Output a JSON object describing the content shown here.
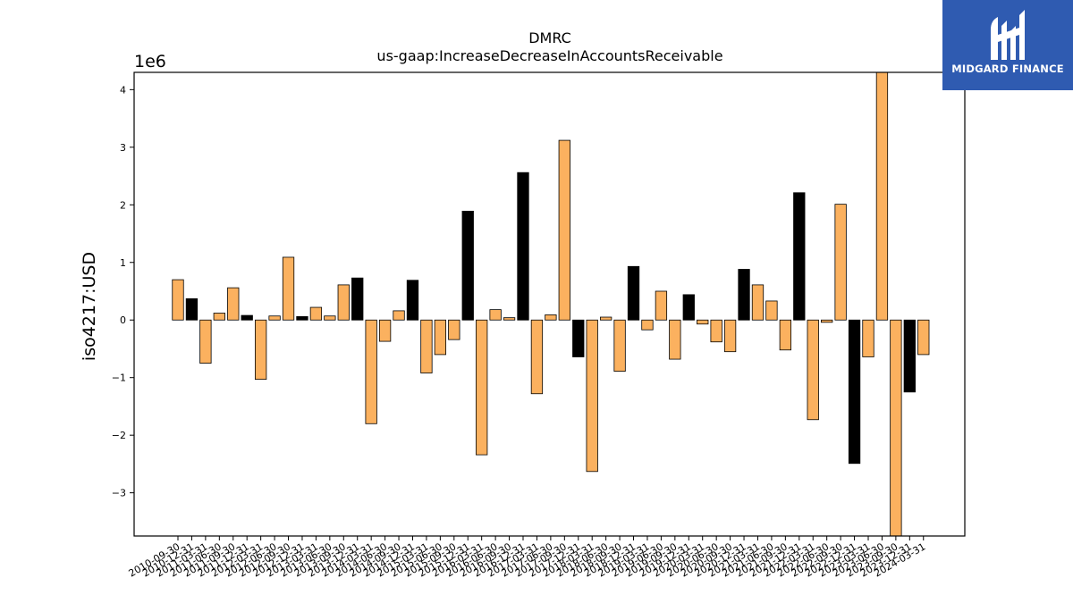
{
  "brand": {
    "name": "MIDGARD FINANCE",
    "background": "#2f5bb1"
  },
  "colors": {
    "bar_default": "#fbb15f",
    "bar_highlight": "#000000",
    "edge": "#000000"
  },
  "chart_data": {
    "type": "bar",
    "title": "DMRC",
    "subtitle": "us-gaap:IncreaseDecreaseInAccountsReceivable",
    "xlabel": "",
    "ylabel": "iso4217:USD",
    "scale_label": "1e6",
    "ylim": [
      -3.75,
      4.3
    ],
    "yticks": [
      -3,
      -2,
      -1,
      0,
      1,
      2,
      3,
      4
    ],
    "ytick_labels": [
      "−3",
      "−2",
      "−1",
      "0",
      "1",
      "2",
      "3",
      "4"
    ],
    "grid": false,
    "categories": [
      "2010-09-30",
      "2010-12-31",
      "2011-03-31",
      "2011-06-30",
      "2011-09-30",
      "2011-12-31",
      "2012-03-31",
      "2012-06-30",
      "2012-09-30",
      "2012-12-31",
      "2013-03-31",
      "2013-06-30",
      "2013-09-30",
      "2013-12-31",
      "2014-03-31",
      "2014-06-30",
      "2014-09-30",
      "2014-12-31",
      "2015-03-31",
      "2015-06-30",
      "2015-09-30",
      "2015-12-31",
      "2016-03-31",
      "2016-06-30",
      "2016-09-30",
      "2016-12-31",
      "2017-03-31",
      "2017-06-30",
      "2017-09-30",
      "2017-12-31",
      "2018-03-31",
      "2018-06-30",
      "2018-09-30",
      "2018-12-31",
      "2019-03-31",
      "2019-06-30",
      "2019-09-30",
      "2019-12-31",
      "2020-03-31",
      "2020-06-30",
      "2020-09-30",
      "2020-12-31",
      "2021-03-31",
      "2021-06-30",
      "2021-09-30",
      "2021-12-31",
      "2022-03-31",
      "2022-06-30",
      "2022-09-30",
      "2022-12-31",
      "2023-03-31",
      "2023-06-30",
      "2023-09-30",
      "2023-12-31",
      "2024-03-31"
    ],
    "values": [
      0.7,
      0.37,
      -0.75,
      0.12,
      0.56,
      0.08,
      -1.03,
      0.07,
      1.09,
      0.06,
      0.22,
      0.07,
      0.61,
      0.73,
      -1.8,
      -0.37,
      0.16,
      0.69,
      -0.92,
      -0.6,
      -0.34,
      1.89,
      -2.34,
      0.18,
      0.04,
      2.56,
      -1.28,
      0.09,
      3.12,
      -0.64,
      -2.63,
      0.05,
      -0.89,
      0.93,
      -0.17,
      0.5,
      -0.68,
      0.44,
      -0.07,
      -0.38,
      -0.55,
      0.88,
      0.61,
      0.33,
      -0.52,
      2.21,
      -1.73,
      -0.04,
      2.01,
      -2.49,
      -0.64,
      4.3,
      -3.75,
      -1.25,
      -0.6
    ],
    "highlight": [
      false,
      true,
      false,
      false,
      false,
      true,
      false,
      false,
      false,
      true,
      false,
      false,
      false,
      true,
      false,
      false,
      false,
      true,
      false,
      false,
      false,
      true,
      false,
      false,
      false,
      true,
      false,
      false,
      false,
      true,
      false,
      false,
      false,
      true,
      false,
      false,
      false,
      true,
      false,
      false,
      false,
      true,
      false,
      false,
      false,
      true,
      false,
      false,
      false,
      true,
      false,
      false,
      false,
      true,
      false
    ]
  }
}
